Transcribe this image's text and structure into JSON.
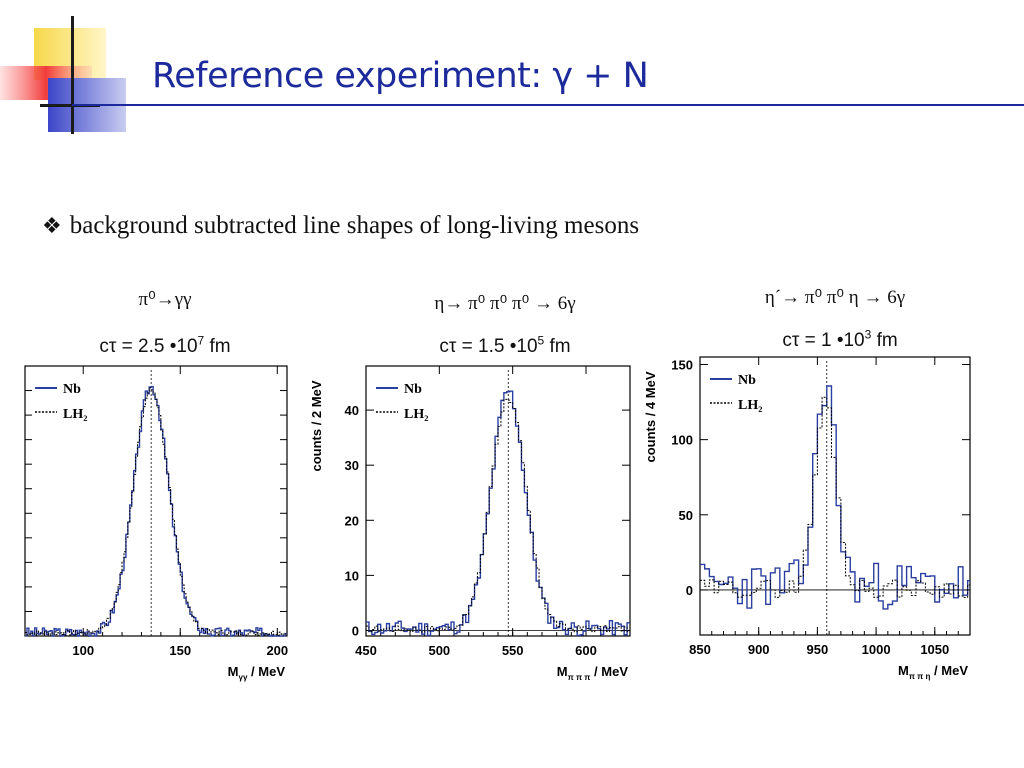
{
  "slide": {
    "title": "Reference experiment:  γ + N",
    "bullet_mark": "❖",
    "bullet_text": "background subtracted line shapes of long-living mesons",
    "colors": {
      "title": "#1c2a9c",
      "series_nb": "#2a3f9f",
      "series_lh2": "#000000"
    }
  },
  "panels": [
    {
      "decay_label": "π⁰→γγ",
      "ctau_prefix": "cτ = 2.5 •10",
      "ctau_exp": "7",
      "ctau_unit": " fm"
    },
    {
      "decay_label": "η→ π⁰ π⁰ π⁰ → 6γ",
      "ctau_prefix": "cτ = 1.5 •10",
      "ctau_exp": "5",
      "ctau_unit": " fm"
    },
    {
      "decay_label": "η´→ π⁰ π⁰ η → 6γ",
      "ctau_prefix": "cτ = 1 •10",
      "ctau_exp": "3",
      "ctau_unit": " fm"
    }
  ],
  "chart_data": [
    {
      "type": "line",
      "xlabel": "M",
      "xlabel_sub": "γγ",
      "xlabel_unit": " / MeV",
      "ylabel": "",
      "xlim": [
        70,
        205
      ],
      "ylim": [
        0,
        1.02
      ],
      "xticks": [
        100,
        150,
        200
      ],
      "yticks": [],
      "ytick_labels": false,
      "marker_x": 135,
      "zero_line": false,
      "legend": [
        "Nb",
        "LH₂"
      ],
      "legend_position": "top-left",
      "series": [
        {
          "name": "Nb",
          "style": "solid",
          "shape": "gauss",
          "center": 135,
          "sigma": 9.0,
          "amp": 0.93,
          "base": 0.012,
          "noise": 0.02,
          "binwidth": 1,
          "seed": 3
        },
        {
          "name": "LH₂",
          "style": "dashed",
          "shape": "gauss",
          "center": 135,
          "sigma": 9.2,
          "amp": 0.92,
          "base": 0.012,
          "noise": 0.01,
          "binwidth": 1,
          "seed": 7
        }
      ]
    },
    {
      "type": "line",
      "xlabel": "M",
      "xlabel_sub": "π π π",
      "xlabel_unit": " / MeV",
      "ylabel": "counts / 2 MeV",
      "xlim": [
        450,
        630
      ],
      "ylim": [
        -1,
        48
      ],
      "xticks": [
        450,
        500,
        550,
        600
      ],
      "yticks": [
        0,
        10,
        20,
        30,
        40
      ],
      "ytick_labels": true,
      "marker_x": 547,
      "zero_line": true,
      "legend": [
        "Nb",
        "LH₂"
      ],
      "legend_position": "top-left",
      "series": [
        {
          "name": "Nb",
          "style": "solid",
          "shape": "gauss",
          "center": 547,
          "sigma": 11.5,
          "amp": 43,
          "base": 0.4,
          "noise": 1.4,
          "binwidth": 2,
          "seed": 11
        },
        {
          "name": "LH₂",
          "style": "dashed",
          "shape": "gauss",
          "center": 547,
          "sigma": 12,
          "amp": 42,
          "base": 0.3,
          "noise": 0.6,
          "binwidth": 2,
          "seed": 17
        }
      ]
    },
    {
      "type": "line",
      "xlabel": "M",
      "xlabel_sub": "π π η",
      "xlabel_unit": " / MeV",
      "ylabel": "counts / 4 MeV",
      "xlim": [
        850,
        1080
      ],
      "ylim": [
        -30,
        155
      ],
      "xticks": [
        850,
        900,
        950,
        1000,
        1050
      ],
      "yticks": [
        0,
        50,
        100,
        150
      ],
      "ytick_labels": true,
      "marker_x": 958,
      "zero_line": true,
      "legend": [
        "Nb",
        "LH₂"
      ],
      "legend_position": "top-left",
      "series": [
        {
          "name": "Nb",
          "style": "solid",
          "shape": "gauss",
          "center": 957,
          "sigma": 8.5,
          "amp": 135,
          "base": 3,
          "noise": 16,
          "binwidth": 4,
          "seed": 23
        },
        {
          "name": "LH₂",
          "style": "dashed",
          "shape": "gauss",
          "center": 957,
          "sigma": 9,
          "amp": 125,
          "base": 1,
          "noise": 6,
          "binwidth": 4,
          "seed": 29
        }
      ]
    }
  ]
}
